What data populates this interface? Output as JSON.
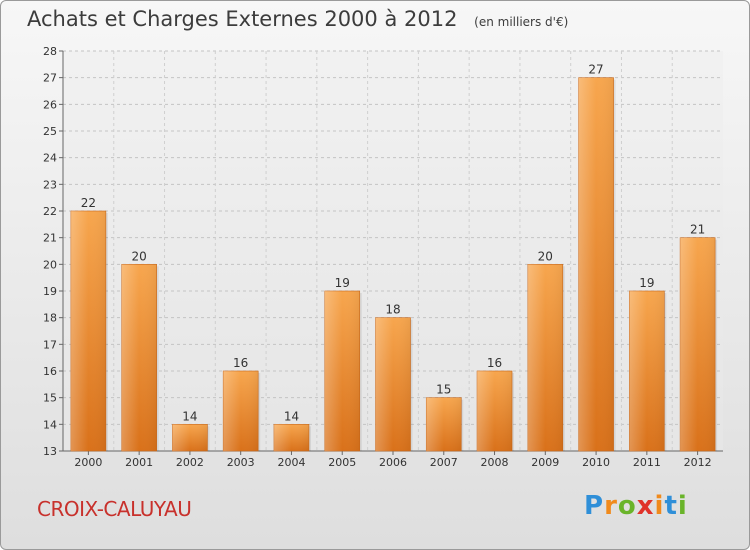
{
  "header": {
    "title": "Achats et Charges Externes 2000 à 2012",
    "unit_note": "(en milliers d'€)"
  },
  "footer": {
    "commune": "CROIX-CALUYAU",
    "logo_parts": [
      "P",
      "r",
      "o",
      "x",
      "i",
      "t",
      "i"
    ]
  },
  "colors": {
    "bar_light": "#f7a64e",
    "bar_dark": "#d9711a",
    "commune": "#c8312c"
  },
  "chart_data": {
    "type": "bar",
    "title": "Achats et Charges Externes 2000 à 2012",
    "subtitle": "(en milliers d'€)",
    "categories": [
      "2000",
      "2001",
      "2002",
      "2003",
      "2004",
      "2005",
      "2006",
      "2007",
      "2008",
      "2009",
      "2010",
      "2011",
      "2012"
    ],
    "values": [
      22,
      20,
      14,
      16,
      14,
      19,
      18,
      15,
      16,
      20,
      27,
      19,
      21
    ],
    "ylim": [
      13,
      28
    ],
    "yticks": [
      13,
      14,
      15,
      16,
      17,
      18,
      19,
      20,
      21,
      22,
      23,
      24,
      25,
      26,
      27,
      28
    ],
    "grid": true,
    "legend": "none"
  }
}
